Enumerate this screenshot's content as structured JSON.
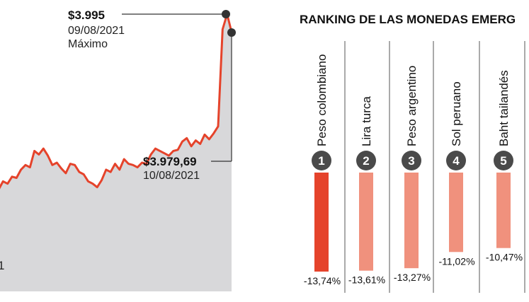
{
  "line_chart": {
    "annotations": {
      "max_value": "$3.995",
      "max_date": "09/08/2021",
      "max_label": "Máximo",
      "last_value": "$3.979,69",
      "last_date": "10/08/2021"
    },
    "edge_tick": "1"
  },
  "ranking": {
    "title": "RANKING DE LAS MONEDAS EMERG"
  },
  "colors": {
    "line": "#e5432b",
    "area": "#d8d8da",
    "bar_top": "#e5432b",
    "bar_other": "#f0917d",
    "badge": "#4a4a4a",
    "divider": "#555555"
  },
  "chart_data": [
    {
      "type": "area",
      "series": [
        {
          "values": [
            3845,
            3852,
            3850,
            3856,
            3855,
            3862,
            3866,
            3864,
            3878,
            3875,
            3880,
            3874,
            3866,
            3868,
            3863,
            3859,
            3867,
            3866,
            3860,
            3858,
            3852,
            3850,
            3847,
            3853,
            3862,
            3860,
            3867,
            3862,
            3871,
            3867,
            3866,
            3864,
            3868,
            3867,
            3875,
            3880,
            3878,
            3876,
            3874,
            3878,
            3879,
            3886,
            3889,
            3882,
            3887,
            3884,
            3892,
            3888,
            3893,
            3899,
            3982,
            3995,
            3979.69
          ]
        }
      ],
      "points": [
        {
          "label": "$3.995",
          "date": "09/08/2021",
          "note": "Máximo",
          "value": 3995
        },
        {
          "label": "$3.979,69",
          "date": "10/08/2021",
          "value": 3979.69
        }
      ]
    },
    {
      "type": "bar",
      "title": "RANKING DE LAS MONEDAS EMERG",
      "categories": [
        "Peso colombiano",
        "Lira turca",
        "Peso argentino",
        "Sol peruano",
        "Baht tailandés"
      ],
      "ranks": [
        "1",
        "2",
        "3",
        "4",
        "5"
      ],
      "values": [
        -13.74,
        -13.61,
        -13.27,
        -11.02,
        -10.47
      ],
      "value_labels": [
        "-13,74%",
        "-13,61%",
        "-13,27%",
        "-11,02%",
        "-10,47%"
      ]
    }
  ]
}
